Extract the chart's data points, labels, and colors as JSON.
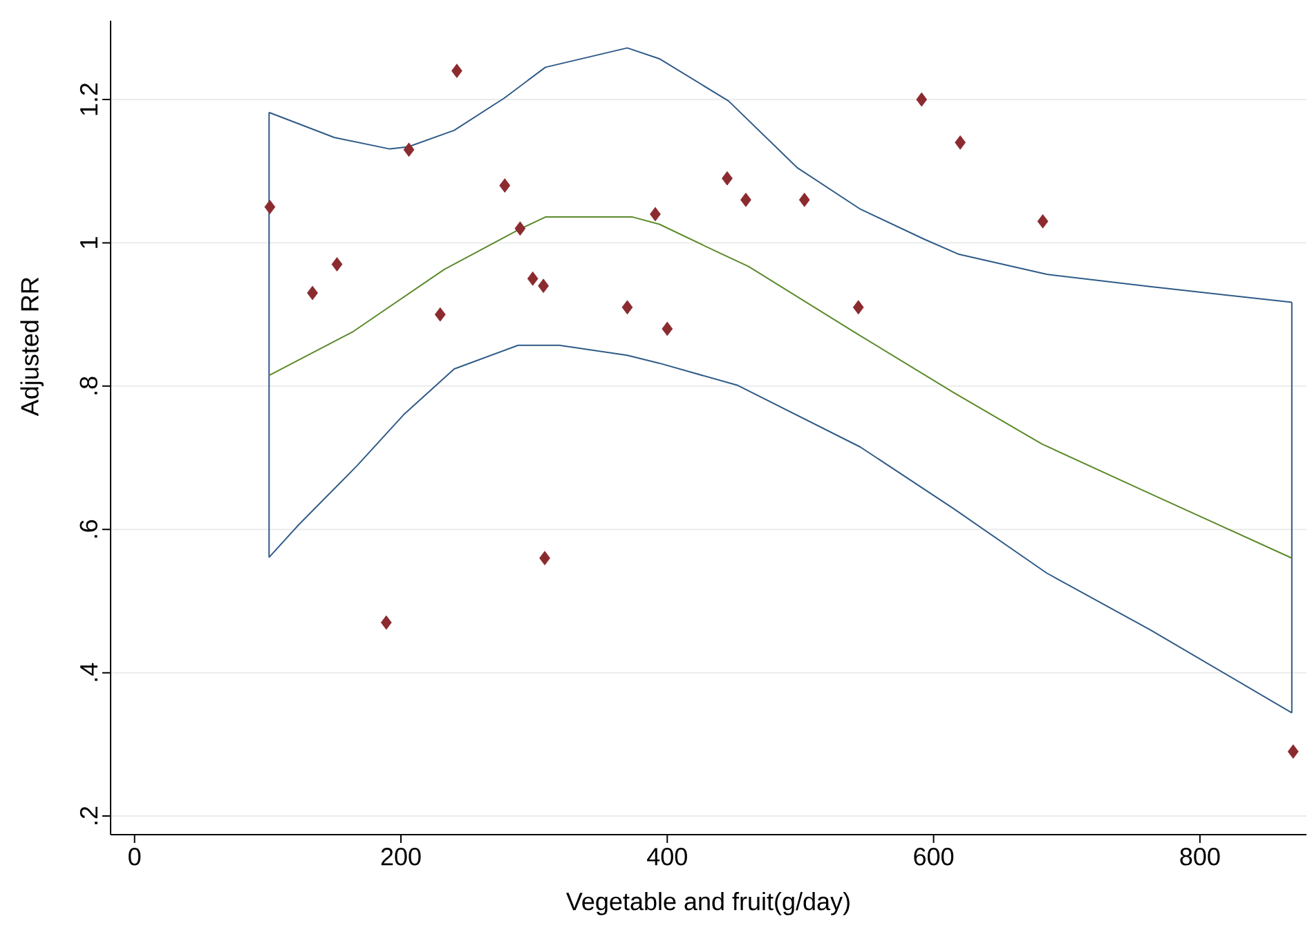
{
  "chart_data": {
    "type": "scatter",
    "xlabel": "Vegetable and fruit(g/day)",
    "ylabel": "Adjusted RR",
    "xlim": [
      -18,
      880
    ],
    "ylim": [
      0.174,
      1.31
    ],
    "xticks": [
      0,
      200,
      400,
      600,
      800
    ],
    "yticks": [
      {
        "value": 0.2,
        "label": ".2"
      },
      {
        "value": 0.4,
        "label": ".4"
      },
      {
        "value": 0.6,
        "label": ".6"
      },
      {
        "value": 0.8,
        "label": ".8"
      },
      {
        "value": 1,
        "label": "1"
      },
      {
        "value": 1.2,
        "label": "1.2"
      }
    ],
    "grid": "y",
    "series": [
      {
        "type": "line",
        "color": "#2e5a87",
        "marker": "none",
        "x": [
          101,
          150,
          191.6,
          205.5,
          240,
          277.6,
          308.5,
          370,
          394,
          446,
          497.5,
          545,
          593,
          619,
          685,
          762.5,
          869
        ],
        "values": [
          1.182,
          1.147,
          1.131,
          1.134,
          1.157,
          1.202,
          1.245,
          1.272,
          1.257,
          1.198,
          1.105,
          1.047,
          1.005,
          0.984,
          0.956,
          0.939,
          0.917
        ]
      },
      {
        "type": "line",
        "color": "#2e5a87",
        "marker": "none",
        "x": [
          101,
          123,
          167.6,
          202,
          240,
          288,
          319,
          370,
          394,
          453,
          545,
          615,
          685,
          762.5,
          869
        ],
        "values": [
          0.561,
          0.606,
          0.69,
          0.76,
          0.824,
          0.857,
          0.857,
          0.843,
          0.832,
          0.801,
          0.715,
          0.629,
          0.539,
          0.46,
          0.344
        ]
      },
      {
        "type": "line",
        "color": "#2e5a87",
        "marker": "none",
        "x": [
          101,
          101
        ],
        "values": [
          0.561,
          1.182
        ]
      },
      {
        "type": "line",
        "color": "#2e5a87",
        "marker": "none",
        "x": [
          869,
          869
        ],
        "values": [
          0.344,
          0.917
        ]
      },
      {
        "type": "line",
        "color": "#5a8a2a",
        "marker": "none",
        "x": [
          101,
          164,
          232.6,
          288,
          308.5,
          374,
          394,
          435.7,
          461,
          541.7,
          615,
          681.6,
          762.5,
          869
        ],
        "values": [
          0.815,
          0.876,
          0.963,
          1.018,
          1.036,
          1.036,
          1.026,
          0.989,
          0.967,
          0.874,
          0.791,
          0.719,
          0.65,
          0.56
        ]
      },
      {
        "color": "#8b2a2f",
        "marker": "diamond",
        "x": [
          101.6,
          133.6,
          152,
          189,
          206,
          229.5,
          242,
          278,
          289.5,
          299,
          307,
          308,
          370,
          391,
          400,
          445,
          459,
          503,
          543.5,
          591,
          620,
          682,
          870
        ],
        "values": [
          1.05,
          0.93,
          0.97,
          0.47,
          1.13,
          0.9,
          1.24,
          1.08,
          1.02,
          0.95,
          0.94,
          0.56,
          0.91,
          1.04,
          0.88,
          1.09,
          1.06,
          1.06,
          0.91,
          1.2,
          1.14,
          1.03,
          0.29
        ]
      }
    ]
  }
}
